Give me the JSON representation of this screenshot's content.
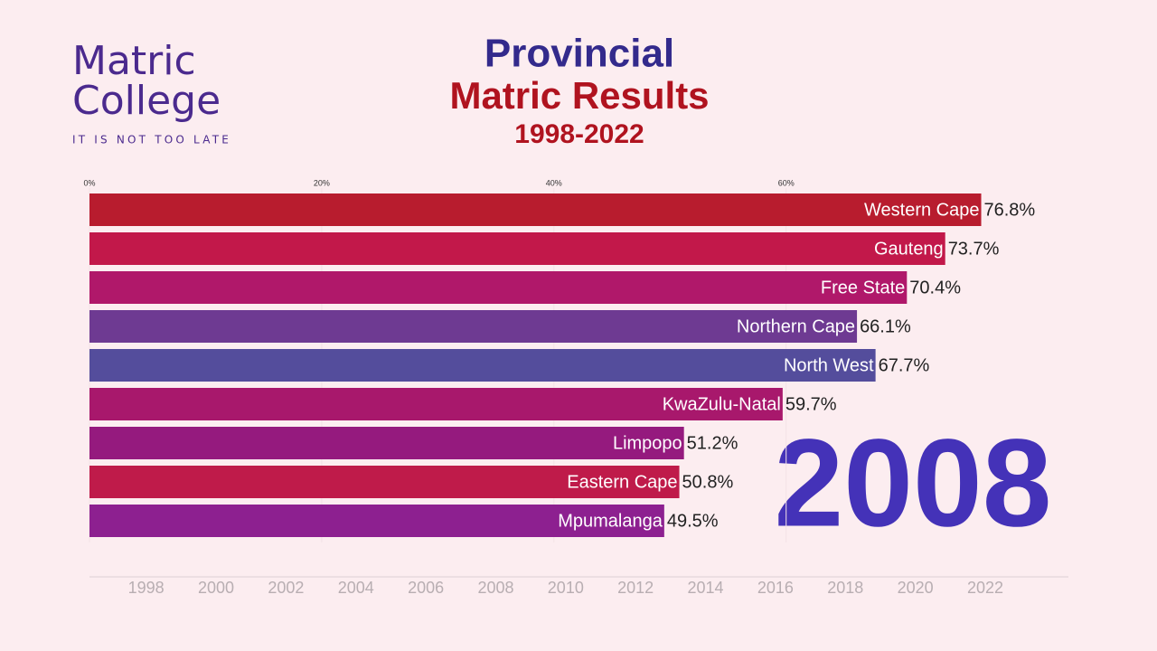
{
  "logo": {
    "line1": "Matric",
    "line2": "College",
    "tagline": "IT IS NOT TOO LATE"
  },
  "chart_data": {
    "type": "bar",
    "orientation": "horizontal",
    "title": "Provincial",
    "subtitle": "Matric Results",
    "period": "1998-2022",
    "current_year": "2008",
    "categories": [
      "Western Cape",
      "Gauteng",
      "Free State",
      "Northern Cape",
      "North West",
      "KwaZulu-Natal",
      "Limpopo",
      "Eastern Cape",
      "Mpumalanga"
    ],
    "values": [
      76.8,
      73.7,
      70.4,
      66.1,
      67.7,
      59.7,
      51.2,
      50.8,
      49.5
    ],
    "value_labels": [
      "76.8%",
      "73.7%",
      "70.4%",
      "66.1%",
      "67.7%",
      "59.7%",
      "51.2%",
      "50.8%",
      "49.5%"
    ],
    "colors": [
      "#b81c2e",
      "#c2184a",
      "#b0186a",
      "#6e3a92",
      "#544d9c",
      "#a8186c",
      "#951a7e",
      "#bf1b4a",
      "#8d2090"
    ],
    "xlim": [
      0,
      84
    ],
    "xticks": [
      {
        "value": 0,
        "label": "0%"
      },
      {
        "value": 20,
        "label": "20%"
      },
      {
        "value": 40,
        "label": "40%"
      },
      {
        "value": 60,
        "label": "60%"
      }
    ],
    "timeline": [
      1998,
      2000,
      2002,
      2004,
      2006,
      2008,
      2010,
      2012,
      2014,
      2016,
      2018,
      2020,
      2022
    ],
    "timeline_lim": [
      1997,
      2025
    ]
  }
}
